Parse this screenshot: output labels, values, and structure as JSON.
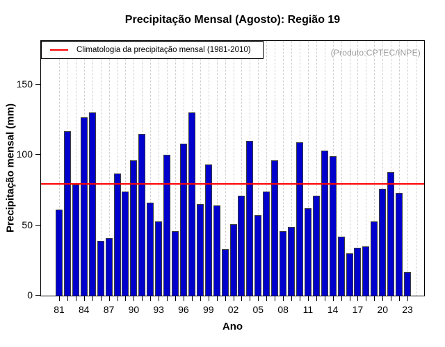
{
  "title": "Precipitação Mensal (Agosto): Região 19",
  "legend": {
    "label": "Climatologia da precipitação mensal (1981-2010)",
    "line_color": "#ff0000"
  },
  "watermark": "(Produto:CPTEC/INPE)",
  "axes": {
    "x_label": "Ano",
    "y_label": "Precipitação mensal (mm)",
    "x_tick_labels": [
      "81",
      "84",
      "87",
      "90",
      "93",
      "96",
      "99",
      "02",
      "05",
      "08",
      "11",
      "14",
      "17",
      "20",
      "23"
    ],
    "x_tick_label_step": 3,
    "y_ticks": [
      0,
      50,
      100,
      150
    ]
  },
  "chart_data": {
    "type": "bar",
    "title": "Precipitação Mensal (Agosto): Região 19",
    "xlabel": "Ano",
    "ylabel": "Precipitação mensal (mm)",
    "categories": [
      1981,
      1982,
      1983,
      1984,
      1985,
      1986,
      1987,
      1988,
      1989,
      1990,
      1991,
      1992,
      1993,
      1994,
      1995,
      1996,
      1997,
      1998,
      1999,
      2000,
      2001,
      2002,
      2003,
      2004,
      2005,
      2006,
      2007,
      2008,
      2009,
      2010,
      2011,
      2012,
      2013,
      2014,
      2015,
      2016,
      2017,
      2018,
      2019,
      2020,
      2021,
      2022,
      2023
    ],
    "values": [
      61,
      117,
      79,
      127,
      130,
      39,
      41,
      87,
      74,
      96,
      115,
      66,
      53,
      100,
      46,
      108,
      130,
      65,
      93,
      64,
      33,
      51,
      71,
      110,
      57,
      74,
      96,
      46,
      49,
      109,
      62,
      71,
      103,
      99,
      42,
      30,
      34,
      35,
      53,
      76,
      88,
      73,
      17
    ],
    "climatology_line": 79.6,
    "ylim": [
      0,
      181
    ],
    "grid": "vertical-dotted",
    "legend_position": "top-left",
    "bar_color": "#0000cd",
    "bar_border_color": "#3d3d3d",
    "line_color": "#ff0000"
  }
}
